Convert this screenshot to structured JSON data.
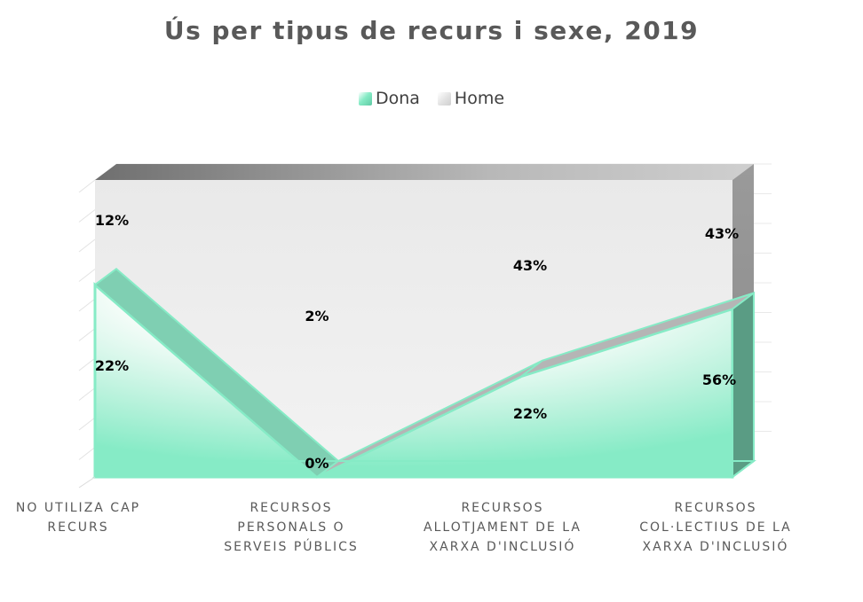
{
  "chart_data": {
    "type": "area",
    "title": "Ús per tipus de recurs i sexe, 2019",
    "categories": [
      "NO UTILIZA CAP RECURS",
      "RECURSOS PERSONALS O SERVEIS PÚBLICS",
      "RECURSOS ALLOTJAMENT DE LA XARXA D'INCLUSIÓ",
      "RECURSOS COL·LECTIUS DE LA XARXA D'INCLUSIÓ"
    ],
    "series": [
      {
        "name": "Dona",
        "values": [
          22,
          0,
          22,
          56
        ],
        "labels": [
          "22%",
          "0%",
          "22%",
          "56%"
        ],
        "color": "#86EBC6"
      },
      {
        "name": "Home",
        "values": [
          12,
          2,
          43,
          43
        ],
        "labels": [
          "12%",
          "2%",
          "43%",
          "43%"
        ],
        "color": "#D9D9D9"
      }
    ],
    "xlabel": "",
    "ylabel": "",
    "stacked": "100%",
    "legend_position": "top",
    "grid": true
  }
}
